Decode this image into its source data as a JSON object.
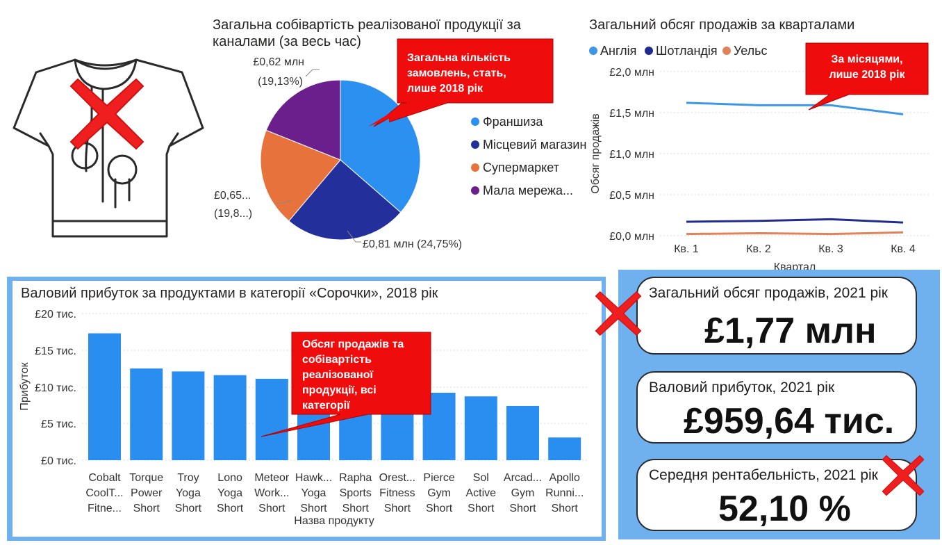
{
  "pie_chart": {
    "title_line1": "Загальна собівартість реалізованої продукції за",
    "title_line2": "каналами (за весь час)",
    "labels": {
      "top": [
        "£0,62 млн",
        "(19,13%)"
      ],
      "left": [
        "£0,65...",
        "(19,8...)"
      ],
      "bottom": "£0,81 млн (24,75%)"
    },
    "legend": [
      "Франшиза",
      "Місцевий магазин",
      "Супермаркет",
      "Мала мережа..."
    ]
  },
  "line_chart": {
    "title": "Загальний обсяг продажів за кварталами",
    "legend": [
      "Англія",
      "Шотландія",
      "Уельс"
    ],
    "y_ticks": [
      "£2,0 млн",
      "£1,5 млн",
      "£1,0 млн",
      "£0,5 млн",
      "£0,0 млн"
    ],
    "x_ticks": [
      "Кв. 1",
      "Кв. 2",
      "Кв. 3",
      "Кв. 4"
    ],
    "ylabel": "Обсяг продажів",
    "xlabel": "Квартал"
  },
  "bar_chart": {
    "title": "Валовий прибуток за продуктами в категорії «Сорочки», 2018 рік",
    "y_ticks": [
      "£20 тис.",
      "£15 тис.",
      "£10 тис.",
      "£5 тис.",
      "£0 тис."
    ],
    "ylabel": "Прибуток",
    "xlabel": "Назва продукту",
    "categories": [
      [
        "Cobalt",
        "CoolT...",
        "Fitne..."
      ],
      [
        "Torque",
        "Power",
        "Short"
      ],
      [
        "Troy",
        "Yoga",
        "Short"
      ],
      [
        "Lono",
        "Yoga",
        "Short"
      ],
      [
        "Meteor",
        "Work...",
        "Short"
      ],
      [
        "Hawk...",
        "Yoga",
        "Short"
      ],
      [
        "Rapha",
        "Sports",
        "Short"
      ],
      [
        "Orest...",
        "Fitness",
        "Short"
      ],
      [
        "Pierce",
        "Gym",
        "Short"
      ],
      [
        "Sol",
        "Active",
        "Short"
      ],
      [
        "Arcad...",
        "Gym",
        "Short"
      ],
      [
        "Apollo",
        "Runni...",
        "Short"
      ]
    ]
  },
  "callouts": {
    "pie": [
      "Загальна кількість",
      "замовлень, стать,",
      "лише 2018 рік"
    ],
    "line": [
      "За місяцями,",
      "лише 2018 рік"
    ],
    "bar": [
      "Обсяг продажів та",
      "собівартість",
      "реалізованої",
      "продукції, всі",
      "категорії"
    ]
  },
  "kpis": {
    "sales_label": "Загальний обсяг продажів, 2021 рік",
    "sales_value": "£1,77 млн",
    "profit_label": "Валовий прибуток, 2021 рік",
    "profit_value": "£959,64 тис.",
    "margin_label": "Середня рентабельність, 2021 рік",
    "margin_value": "52,10 %"
  },
  "icons": {
    "tshirt": "tshirt-icon",
    "cross": "red-x-icon"
  },
  "colors": {
    "franchise": "#2b90f0",
    "local_store": "#23309c",
    "supermarket": "#e8723c",
    "small_chain": "#6a1f8c",
    "england": "#3d97e6",
    "scotland": "#1f2b8f",
    "wales": "#e0825a",
    "bar": "#2a8ef0",
    "callout": "#ef0c0c",
    "panel": "#6fb0ee",
    "cross": "#f01f1f"
  },
  "chart_data": [
    {
      "type": "pie",
      "title": "Загальна собівартість реалізованої продукції за каналами (за весь час)",
      "series": [
        {
          "name": "Франшиза",
          "value": 1.19,
          "percent": 36.3
        },
        {
          "name": "Місцевий магазин",
          "value": 0.81,
          "percent": 24.75
        },
        {
          "name": "Супермаркет",
          "value": 0.65,
          "percent": 19.8
        },
        {
          "name": "Мала мережа...",
          "value": 0.62,
          "percent": 19.13
        }
      ]
    },
    {
      "type": "line",
      "title": "Загальний обсяг продажів за кварталами",
      "xlabel": "Квартал",
      "ylabel": "Обсяг продажів",
      "categories": [
        "Кв. 1",
        "Кв. 2",
        "Кв. 3",
        "Кв. 4"
      ],
      "ylim": [
        0,
        2.0
      ],
      "series": [
        {
          "name": "Англія",
          "values": [
            1.62,
            1.59,
            1.59,
            1.48
          ]
        },
        {
          "name": "Шотландія",
          "values": [
            0.17,
            0.18,
            0.2,
            0.16
          ]
        },
        {
          "name": "Уельс",
          "values": [
            0.02,
            0.03,
            0.02,
            0.04
          ]
        }
      ]
    },
    {
      "type": "bar",
      "title": "Валовий прибуток за продуктами в категорії «Сорочки», 2018 рік",
      "xlabel": "Назва продукту",
      "ylabel": "Прибуток",
      "categories": [
        "Cobalt CoolT... Fitne...",
        "Torque Power Short",
        "Troy Yoga Short",
        "Lono Yoga Short",
        "Meteor Work... Short",
        "Hawk... Yoga Short",
        "Rapha Sports Short",
        "Orest... Fitness Short",
        "Pierce Gym Short",
        "Sol Active Short",
        "Arcad... Gym Short",
        "Apollo Runni... Short"
      ],
      "values": [
        17.3,
        12.5,
        12.1,
        11.6,
        11.1,
        10.5,
        9.9,
        9.5,
        9.2,
        8.7,
        7.4,
        3.1
      ],
      "ylim": [
        0,
        20
      ]
    }
  ]
}
